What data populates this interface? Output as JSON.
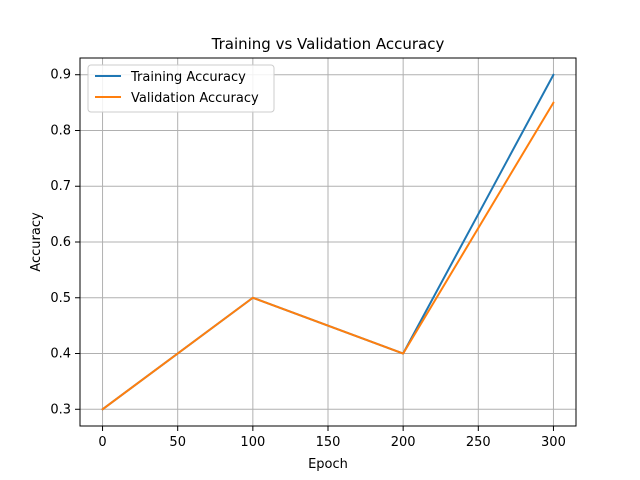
{
  "chart_data": {
    "type": "line",
    "title": "Training vs Validation Accuracy",
    "xlabel": "Epoch",
    "ylabel": "Accuracy",
    "x": [
      0,
      100,
      200,
      300
    ],
    "series": [
      {
        "name": "Training Accuracy",
        "color": "#1f77b4",
        "values": [
          0.3,
          0.5,
          0.4,
          0.9
        ]
      },
      {
        "name": "Validation Accuracy",
        "color": "#ff7f0e",
        "values": [
          0.3,
          0.5,
          0.4,
          0.85
        ]
      }
    ],
    "xlim": [
      -15,
      315
    ],
    "ylim": [
      0.27,
      0.93
    ],
    "xticks": [
      0,
      50,
      100,
      150,
      200,
      250,
      300
    ],
    "xtick_labels": [
      "0",
      "50",
      "100",
      "150",
      "200",
      "250",
      "300"
    ],
    "yticks": [
      0.3,
      0.4,
      0.5,
      0.6,
      0.7,
      0.8,
      0.9
    ],
    "ytick_labels": [
      "0.3",
      "0.4",
      "0.5",
      "0.6",
      "0.7",
      "0.8",
      "0.9"
    ],
    "grid": true,
    "legend_position": "top-left"
  }
}
